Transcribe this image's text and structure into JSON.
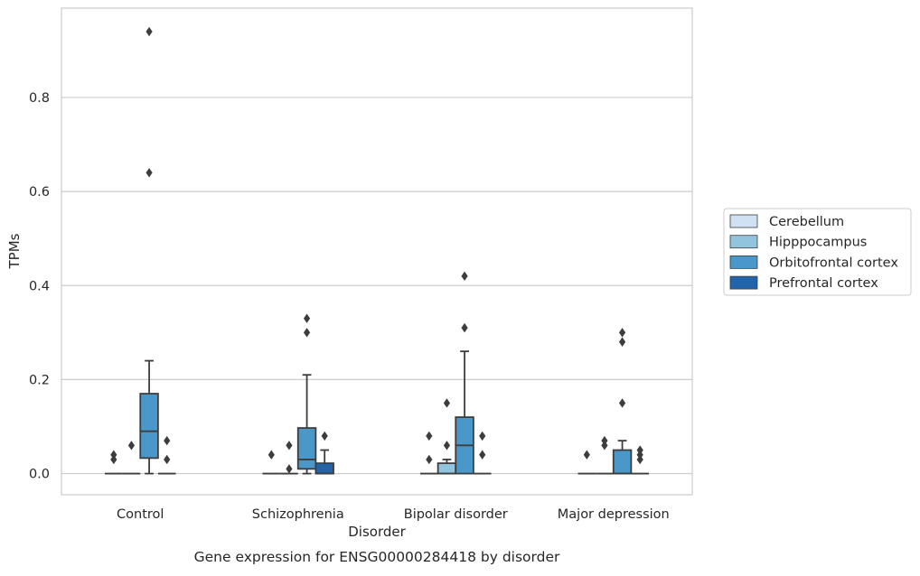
{
  "caption": "Gene expression for ENSG00000284418 by disorder",
  "colors": {
    "Cerebellum": "#cfe1f2",
    "Hipppocampus": "#93c4de",
    "Orbitofrontal cortex": "#4a98c9",
    "Prefrontal cortex": "#2164ab",
    "grid": "#cccccc",
    "line": "#3d3d3d"
  },
  "chart_data": {
    "type": "box",
    "title": "",
    "xlabel": "Disorder",
    "ylabel": "TPMs",
    "ylim": [
      -0.045,
      0.99
    ],
    "yticks": [
      0.0,
      0.2,
      0.4,
      0.6,
      0.8
    ],
    "ytick_labels": [
      "0.0",
      "0.2",
      "0.4",
      "0.6",
      "0.8"
    ],
    "grid": true,
    "legend_position": "right",
    "categories": [
      "Control",
      "Schizophrenia",
      "Bipolar disorder",
      "Major depression"
    ],
    "series": [
      {
        "name": "Cerebellum",
        "boxes": [
          {
            "q1": 0,
            "median": 0,
            "q3": 0,
            "whislo": 0,
            "whishi": 0,
            "fliers": [
              0.03,
              0.04
            ]
          },
          {
            "q1": 0,
            "median": 0,
            "q3": 0,
            "whislo": 0,
            "whishi": 0,
            "fliers": [
              0.04
            ]
          },
          {
            "q1": 0,
            "median": 0,
            "q3": 0,
            "whislo": 0,
            "whishi": 0,
            "fliers": [
              0.03,
              0.08
            ]
          },
          {
            "q1": 0,
            "median": 0,
            "q3": 0,
            "whislo": 0,
            "whishi": 0,
            "fliers": [
              0.04
            ]
          }
        ]
      },
      {
        "name": "Hipppocampus",
        "boxes": [
          {
            "q1": 0,
            "median": 0,
            "q3": 0,
            "whislo": 0,
            "whishi": 0,
            "fliers": [
              0.06
            ]
          },
          {
            "q1": 0,
            "median": 0,
            "q3": 0,
            "whislo": 0,
            "whishi": 0,
            "fliers": [
              0.01,
              0.06
            ]
          },
          {
            "q1": 0,
            "median": 0,
            "q3": 0.022,
            "whislo": 0,
            "whishi": 0.03,
            "fliers": [
              0.06,
              0.15
            ]
          },
          {
            "q1": 0,
            "median": 0,
            "q3": 0,
            "whislo": 0,
            "whishi": 0,
            "fliers": [
              0.06,
              0.07
            ]
          }
        ]
      },
      {
        "name": "Orbitofrontal cortex",
        "boxes": [
          {
            "q1": 0.033,
            "median": 0.09,
            "q3": 0.17,
            "whislo": 0,
            "whishi": 0.24,
            "fliers": [
              0.64,
              0.94
            ]
          },
          {
            "q1": 0.01,
            "median": 0.03,
            "q3": 0.097,
            "whislo": 0,
            "whishi": 0.21,
            "fliers": [
              0.3,
              0.33
            ]
          },
          {
            "q1": 0,
            "median": 0.06,
            "q3": 0.12,
            "whislo": 0,
            "whishi": 0.26,
            "fliers": [
              0.31,
              0.42
            ]
          },
          {
            "q1": 0,
            "median": 0,
            "q3": 0.05,
            "whislo": 0,
            "whishi": 0.07,
            "fliers": [
              0.15,
              0.28,
              0.3
            ]
          }
        ]
      },
      {
        "name": "Prefrontal cortex",
        "boxes": [
          {
            "q1": 0,
            "median": 0,
            "q3": 0,
            "whislo": 0,
            "whishi": 0,
            "fliers": [
              0.03,
              0.07
            ]
          },
          {
            "q1": 0,
            "median": 0,
            "q3": 0.022,
            "whislo": 0,
            "whishi": 0.05,
            "fliers": [
              0.08
            ]
          },
          {
            "q1": 0,
            "median": 0,
            "q3": 0,
            "whislo": 0,
            "whishi": 0,
            "fliers": [
              0.04,
              0.08
            ]
          },
          {
            "q1": 0,
            "median": 0,
            "q3": 0,
            "whislo": 0,
            "whishi": 0,
            "fliers": [
              0.03,
              0.04,
              0.05
            ]
          }
        ]
      }
    ]
  }
}
